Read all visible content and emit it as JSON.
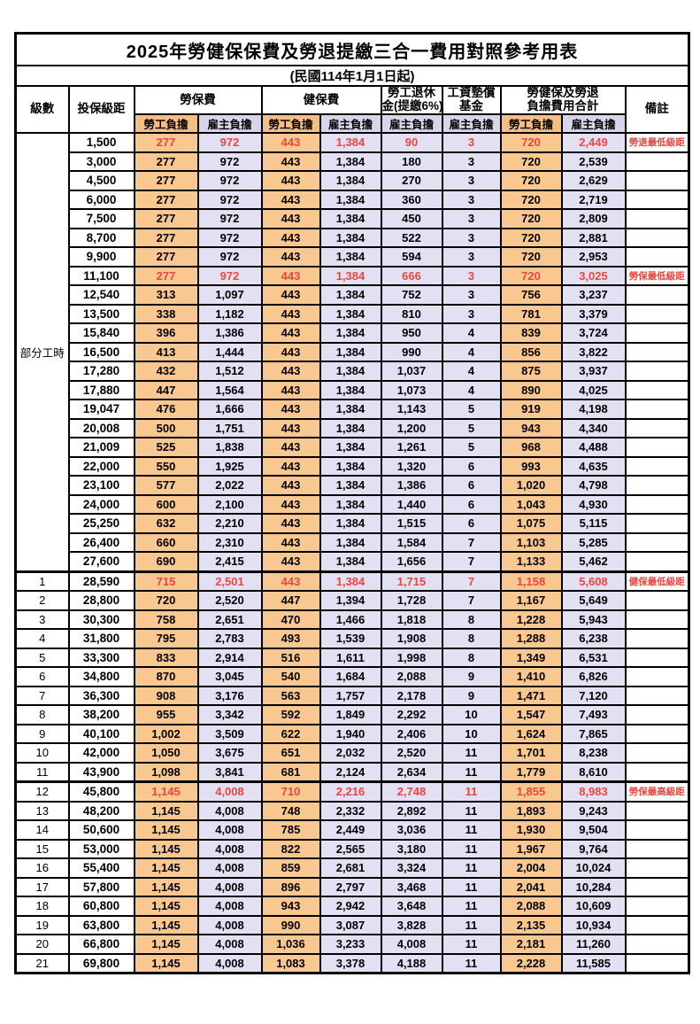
{
  "title": "2025年勞健保保費及勞退提繳三合一費用對照參考用表",
  "subtitle": "(民國114年1月1日起)",
  "colors": {
    "employee_fill": "#F8C890",
    "employer_fill": "#E2E0F2",
    "employee_fill_header": "#F5BE85",
    "employer_fill_header": "#D8D5EA",
    "highlight_text": "#E9463E",
    "border": "#000000"
  },
  "header": {
    "level": "級數",
    "bracket": "投保級距",
    "labor_fee": "勞保費",
    "health_fee": "健保費",
    "pension_l1": "勞工退休",
    "pension_l2": "金(提繳6%)",
    "wage_fund_l1": "工資墊償",
    "wage_fund_l2": "基金",
    "total_l1": "勞健保及勞退",
    "total_l2": "負擔費用合計",
    "remark": "備註",
    "employee_label": "勞工負擔",
    "employer_label": "雇主負擔"
  },
  "group": {
    "label": "部分工時",
    "rowspan": 23
  },
  "rows": [
    {
      "level": null,
      "bracket": "1,500",
      "v": [
        "277",
        "972",
        "443",
        "1,384",
        "90",
        "3",
        "720",
        "2,449"
      ],
      "remark": "勞退最低級距",
      "red": true,
      "section_break": false
    },
    {
      "level": null,
      "bracket": "3,000",
      "v": [
        "277",
        "972",
        "443",
        "1,384",
        "180",
        "3",
        "720",
        "2,539"
      ],
      "remark": "",
      "red": false,
      "section_break": false
    },
    {
      "level": null,
      "bracket": "4,500",
      "v": [
        "277",
        "972",
        "443",
        "1,384",
        "270",
        "3",
        "720",
        "2,629"
      ],
      "remark": "",
      "red": false,
      "section_break": false
    },
    {
      "level": null,
      "bracket": "6,000",
      "v": [
        "277",
        "972",
        "443",
        "1,384",
        "360",
        "3",
        "720",
        "2,719"
      ],
      "remark": "",
      "red": false,
      "section_break": false
    },
    {
      "level": null,
      "bracket": "7,500",
      "v": [
        "277",
        "972",
        "443",
        "1,384",
        "450",
        "3",
        "720",
        "2,809"
      ],
      "remark": "",
      "red": false,
      "section_break": false
    },
    {
      "level": null,
      "bracket": "8,700",
      "v": [
        "277",
        "972",
        "443",
        "1,384",
        "522",
        "3",
        "720",
        "2,881"
      ],
      "remark": "",
      "red": false,
      "section_break": false
    },
    {
      "level": null,
      "bracket": "9,900",
      "v": [
        "277",
        "972",
        "443",
        "1,384",
        "594",
        "3",
        "720",
        "2,953"
      ],
      "remark": "",
      "red": false,
      "section_break": false
    },
    {
      "level": null,
      "bracket": "11,100",
      "v": [
        "277",
        "972",
        "443",
        "1,384",
        "666",
        "3",
        "720",
        "3,025"
      ],
      "remark": "勞保最低級距",
      "red": true,
      "section_break": false
    },
    {
      "level": null,
      "bracket": "12,540",
      "v": [
        "313",
        "1,097",
        "443",
        "1,384",
        "752",
        "3",
        "756",
        "3,237"
      ],
      "remark": "",
      "red": false,
      "section_break": false
    },
    {
      "level": null,
      "bracket": "13,500",
      "v": [
        "338",
        "1,182",
        "443",
        "1,384",
        "810",
        "3",
        "781",
        "3,379"
      ],
      "remark": "",
      "red": false,
      "section_break": false
    },
    {
      "level": null,
      "bracket": "15,840",
      "v": [
        "396",
        "1,386",
        "443",
        "1,384",
        "950",
        "4",
        "839",
        "3,724"
      ],
      "remark": "",
      "red": false,
      "section_break": false
    },
    {
      "level": null,
      "bracket": "16,500",
      "v": [
        "413",
        "1,444",
        "443",
        "1,384",
        "990",
        "4",
        "856",
        "3,822"
      ],
      "remark": "",
      "red": false,
      "section_break": false
    },
    {
      "level": null,
      "bracket": "17,280",
      "v": [
        "432",
        "1,512",
        "443",
        "1,384",
        "1,037",
        "4",
        "875",
        "3,937"
      ],
      "remark": "",
      "red": false,
      "section_break": false
    },
    {
      "level": null,
      "bracket": "17,880",
      "v": [
        "447",
        "1,564",
        "443",
        "1,384",
        "1,073",
        "4",
        "890",
        "4,025"
      ],
      "remark": "",
      "red": false,
      "section_break": false
    },
    {
      "level": null,
      "bracket": "19,047",
      "v": [
        "476",
        "1,666",
        "443",
        "1,384",
        "1,143",
        "5",
        "919",
        "4,198"
      ],
      "remark": "",
      "red": false,
      "section_break": false
    },
    {
      "level": null,
      "bracket": "20,008",
      "v": [
        "500",
        "1,751",
        "443",
        "1,384",
        "1,200",
        "5",
        "943",
        "4,340"
      ],
      "remark": "",
      "red": false,
      "section_break": false
    },
    {
      "level": null,
      "bracket": "21,009",
      "v": [
        "525",
        "1,838",
        "443",
        "1,384",
        "1,261",
        "5",
        "968",
        "4,488"
      ],
      "remark": "",
      "red": false,
      "section_break": false
    },
    {
      "level": null,
      "bracket": "22,000",
      "v": [
        "550",
        "1,925",
        "443",
        "1,384",
        "1,320",
        "6",
        "993",
        "4,635"
      ],
      "remark": "",
      "red": false,
      "section_break": false
    },
    {
      "level": null,
      "bracket": "23,100",
      "v": [
        "577",
        "2,022",
        "443",
        "1,384",
        "1,386",
        "6",
        "1,020",
        "4,798"
      ],
      "remark": "",
      "red": false,
      "section_break": false
    },
    {
      "level": null,
      "bracket": "24,000",
      "v": [
        "600",
        "2,100",
        "443",
        "1,384",
        "1,440",
        "6",
        "1,043",
        "4,930"
      ],
      "remark": "",
      "red": false,
      "section_break": false
    },
    {
      "level": null,
      "bracket": "25,250",
      "v": [
        "632",
        "2,210",
        "443",
        "1,384",
        "1,515",
        "6",
        "1,075",
        "5,115"
      ],
      "remark": "",
      "red": false,
      "section_break": false
    },
    {
      "level": null,
      "bracket": "26,400",
      "v": [
        "660",
        "2,310",
        "443",
        "1,384",
        "1,584",
        "7",
        "1,103",
        "5,285"
      ],
      "remark": "",
      "red": false,
      "section_break": false
    },
    {
      "level": null,
      "bracket": "27,600",
      "v": [
        "690",
        "2,415",
        "443",
        "1,384",
        "1,656",
        "7",
        "1,133",
        "5,462"
      ],
      "remark": "",
      "red": false,
      "section_break": false
    },
    {
      "level": "1",
      "bracket": "28,590",
      "v": [
        "715",
        "2,501",
        "443",
        "1,384",
        "1,715",
        "7",
        "1,158",
        "5,608"
      ],
      "remark": "健保最低級距",
      "red": true,
      "section_break": true
    },
    {
      "level": "2",
      "bracket": "28,800",
      "v": [
        "720",
        "2,520",
        "447",
        "1,394",
        "1,728",
        "7",
        "1,167",
        "5,649"
      ],
      "remark": "",
      "red": false,
      "section_break": false
    },
    {
      "level": "3",
      "bracket": "30,300",
      "v": [
        "758",
        "2,651",
        "470",
        "1,466",
        "1,818",
        "8",
        "1,228",
        "5,943"
      ],
      "remark": "",
      "red": false,
      "section_break": false
    },
    {
      "level": "4",
      "bracket": "31,800",
      "v": [
        "795",
        "2,783",
        "493",
        "1,539",
        "1,908",
        "8",
        "1,288",
        "6,238"
      ],
      "remark": "",
      "red": false,
      "section_break": false
    },
    {
      "level": "5",
      "bracket": "33,300",
      "v": [
        "833",
        "2,914",
        "516",
        "1,611",
        "1,998",
        "8",
        "1,349",
        "6,531"
      ],
      "remark": "",
      "red": false,
      "section_break": false
    },
    {
      "level": "6",
      "bracket": "34,800",
      "v": [
        "870",
        "3,045",
        "540",
        "1,684",
        "2,088",
        "9",
        "1,410",
        "6,826"
      ],
      "remark": "",
      "red": false,
      "section_break": false
    },
    {
      "level": "7",
      "bracket": "36,300",
      "v": [
        "908",
        "3,176",
        "563",
        "1,757",
        "2,178",
        "9",
        "1,471",
        "7,120"
      ],
      "remark": "",
      "red": false,
      "section_break": false
    },
    {
      "level": "8",
      "bracket": "38,200",
      "v": [
        "955",
        "3,342",
        "592",
        "1,849",
        "2,292",
        "10",
        "1,547",
        "7,493"
      ],
      "remark": "",
      "red": false,
      "section_break": false
    },
    {
      "level": "9",
      "bracket": "40,100",
      "v": [
        "1,002",
        "3,509",
        "622",
        "1,940",
        "2,406",
        "10",
        "1,624",
        "7,865"
      ],
      "remark": "",
      "red": false,
      "section_break": false
    },
    {
      "level": "10",
      "bracket": "42,000",
      "v": [
        "1,050",
        "3,675",
        "651",
        "2,032",
        "2,520",
        "11",
        "1,701",
        "8,238"
      ],
      "remark": "",
      "red": false,
      "section_break": false
    },
    {
      "level": "11",
      "bracket": "43,900",
      "v": [
        "1,098",
        "3,841",
        "681",
        "2,124",
        "2,634",
        "11",
        "1,779",
        "8,610"
      ],
      "remark": "",
      "red": false,
      "section_break": false
    },
    {
      "level": "12",
      "bracket": "45,800",
      "v": [
        "1,145",
        "4,008",
        "710",
        "2,216",
        "2,748",
        "11",
        "1,855",
        "8,983"
      ],
      "remark": "勞保最高級距",
      "red": true,
      "section_break": true
    },
    {
      "level": "13",
      "bracket": "48,200",
      "v": [
        "1,145",
        "4,008",
        "748",
        "2,332",
        "2,892",
        "11",
        "1,893",
        "9,243"
      ],
      "remark": "",
      "red": false,
      "section_break": false
    },
    {
      "level": "14",
      "bracket": "50,600",
      "v": [
        "1,145",
        "4,008",
        "785",
        "2,449",
        "3,036",
        "11",
        "1,930",
        "9,504"
      ],
      "remark": "",
      "red": false,
      "section_break": false
    },
    {
      "level": "15",
      "bracket": "53,000",
      "v": [
        "1,145",
        "4,008",
        "822",
        "2,565",
        "3,180",
        "11",
        "1,967",
        "9,764"
      ],
      "remark": "",
      "red": false,
      "section_break": false
    },
    {
      "level": "16",
      "bracket": "55,400",
      "v": [
        "1,145",
        "4,008",
        "859",
        "2,681",
        "3,324",
        "11",
        "2,004",
        "10,024"
      ],
      "remark": "",
      "red": false,
      "section_break": false
    },
    {
      "level": "17",
      "bracket": "57,800",
      "v": [
        "1,145",
        "4,008",
        "896",
        "2,797",
        "3,468",
        "11",
        "2,041",
        "10,284"
      ],
      "remark": "",
      "red": false,
      "section_break": false
    },
    {
      "level": "18",
      "bracket": "60,800",
      "v": [
        "1,145",
        "4,008",
        "943",
        "2,942",
        "3,648",
        "11",
        "2,088",
        "10,609"
      ],
      "remark": "",
      "red": false,
      "section_break": false
    },
    {
      "level": "19",
      "bracket": "63,800",
      "v": [
        "1,145",
        "4,008",
        "990",
        "3,087",
        "3,828",
        "11",
        "2,135",
        "10,934"
      ],
      "remark": "",
      "red": false,
      "section_break": false
    },
    {
      "level": "20",
      "bracket": "66,800",
      "v": [
        "1,145",
        "4,008",
        "1,036",
        "3,233",
        "4,008",
        "11",
        "2,181",
        "11,260"
      ],
      "remark": "",
      "red": false,
      "section_break": false
    },
    {
      "level": "21",
      "bracket": "69,800",
      "v": [
        "1,145",
        "4,008",
        "1,083",
        "3,378",
        "4,188",
        "11",
        "2,228",
        "11,585"
      ],
      "remark": "",
      "red": false,
      "section_break": false
    }
  ]
}
